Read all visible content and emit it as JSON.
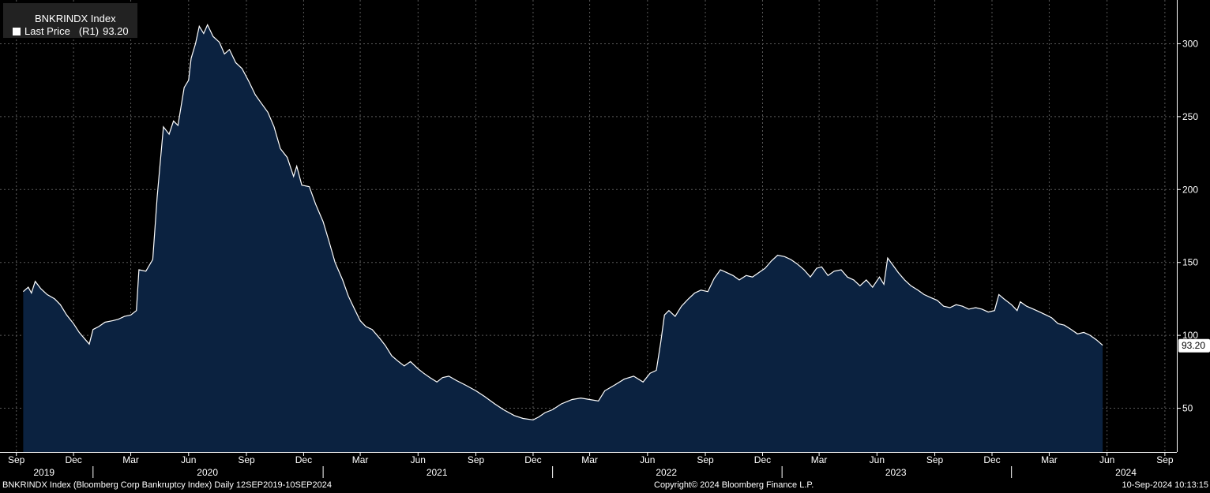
{
  "legend": {
    "title": "BNKRINDX Index",
    "series_label": "Last Price",
    "axis_ref": "(R1)",
    "value": "93.20"
  },
  "footer": {
    "left": "BNKRINDX Index (Bloomberg Corp Bankruptcy Index)  Daily 12SEP2019-10SEP2024",
    "center": "Copyright© 2024 Bloomberg Finance L.P.",
    "right": "10-Sep-2024 10:13:15"
  },
  "colors": {
    "background": "#000000",
    "area_fill": "#0b2240",
    "line": "#ffffff",
    "grid": "#5a5a5a"
  },
  "chart_data": {
    "type": "area",
    "title": "BNKRINDX Index",
    "frequency": "Daily",
    "date_range": [
      "2019-09-12",
      "2024-09-10"
    ],
    "y_axis": {
      "side": "right",
      "ylim": [
        20,
        330
      ],
      "ticks": [
        50,
        100,
        150,
        200,
        250,
        300
      ]
    },
    "last_value": 93.2,
    "x_month_labels": [
      {
        "date": "2019-09-01",
        "label": "Sep"
      },
      {
        "date": "2019-12-01",
        "label": "Dec"
      },
      {
        "date": "2020-03-01",
        "label": "Mar"
      },
      {
        "date": "2020-06-01",
        "label": "Jun"
      },
      {
        "date": "2020-09-01",
        "label": "Sep"
      },
      {
        "date": "2020-12-01",
        "label": "Dec"
      },
      {
        "date": "2021-03-01",
        "label": "Mar"
      },
      {
        "date": "2021-06-01",
        "label": "Jun"
      },
      {
        "date": "2021-09-01",
        "label": "Sep"
      },
      {
        "date": "2021-12-01",
        "label": "Dec"
      },
      {
        "date": "2022-03-01",
        "label": "Mar"
      },
      {
        "date": "2022-06-01",
        "label": "Jun"
      },
      {
        "date": "2022-09-01",
        "label": "Sep"
      },
      {
        "date": "2022-12-01",
        "label": "Dec"
      },
      {
        "date": "2023-03-01",
        "label": "Mar"
      },
      {
        "date": "2023-06-01",
        "label": "Jun"
      },
      {
        "date": "2023-09-01",
        "label": "Sep"
      },
      {
        "date": "2023-12-01",
        "label": "Dec"
      },
      {
        "date": "2024-03-01",
        "label": "Mar"
      },
      {
        "date": "2024-06-01",
        "label": "Jun"
      },
      {
        "date": "2024-09-01",
        "label": "Sep"
      }
    ],
    "x_year_labels": [
      {
        "date": "2019-10-15",
        "label": "2019"
      },
      {
        "date": "2020-07-01",
        "label": "2020"
      },
      {
        "date": "2021-07-01",
        "label": "2021"
      },
      {
        "date": "2022-07-01",
        "label": "2022"
      },
      {
        "date": "2023-07-01",
        "label": "2023"
      },
      {
        "date": "2024-07-01",
        "label": "2024"
      }
    ],
    "year_boundaries": [
      "2020-01-01",
      "2021-01-01",
      "2022-01-01",
      "2023-01-01",
      "2024-01-01"
    ],
    "series": [
      {
        "points": [
          [
            "2019-09-12",
            130
          ],
          [
            "2019-09-20",
            133
          ],
          [
            "2019-09-25",
            129
          ],
          [
            "2019-10-01",
            137
          ],
          [
            "2019-10-10",
            132
          ],
          [
            "2019-10-20",
            128
          ],
          [
            "2019-11-01",
            125
          ],
          [
            "2019-11-10",
            121
          ],
          [
            "2019-11-20",
            114
          ],
          [
            "2019-12-01",
            108
          ],
          [
            "2019-12-10",
            102
          ],
          [
            "2019-12-20",
            97
          ],
          [
            "2019-12-26",
            94
          ],
          [
            "2020-01-01",
            104
          ],
          [
            "2020-01-10",
            106
          ],
          [
            "2020-01-20",
            109
          ],
          [
            "2020-02-01",
            110
          ],
          [
            "2020-02-10",
            111
          ],
          [
            "2020-02-20",
            113
          ],
          [
            "2020-03-01",
            114
          ],
          [
            "2020-03-10",
            117
          ],
          [
            "2020-03-14",
            145
          ],
          [
            "2020-03-25",
            144
          ],
          [
            "2020-04-05",
            152
          ],
          [
            "2020-04-12",
            195
          ],
          [
            "2020-04-22",
            243
          ],
          [
            "2020-05-01",
            238
          ],
          [
            "2020-05-08",
            247
          ],
          [
            "2020-05-15",
            244
          ],
          [
            "2020-05-25",
            270
          ],
          [
            "2020-06-01",
            275
          ],
          [
            "2020-06-05",
            290
          ],
          [
            "2020-06-12",
            300
          ],
          [
            "2020-06-18",
            312
          ],
          [
            "2020-06-25",
            307
          ],
          [
            "2020-07-01",
            313
          ],
          [
            "2020-07-10",
            305
          ],
          [
            "2020-07-20",
            301
          ],
          [
            "2020-07-28",
            293
          ],
          [
            "2020-08-05",
            296
          ],
          [
            "2020-08-15",
            287
          ],
          [
            "2020-08-25",
            283
          ],
          [
            "2020-09-05",
            274
          ],
          [
            "2020-09-15",
            265
          ],
          [
            "2020-09-25",
            259
          ],
          [
            "2020-10-05",
            253
          ],
          [
            "2020-10-15",
            243
          ],
          [
            "2020-10-25",
            228
          ],
          [
            "2020-11-05",
            222
          ],
          [
            "2020-11-15",
            209
          ],
          [
            "2020-11-20",
            216
          ],
          [
            "2020-11-28",
            203
          ],
          [
            "2020-12-10",
            202
          ],
          [
            "2020-12-20",
            190
          ],
          [
            "2021-01-01",
            178
          ],
          [
            "2021-01-10",
            165
          ],
          [
            "2021-01-20",
            150
          ],
          [
            "2021-02-01",
            138
          ],
          [
            "2021-02-10",
            127
          ],
          [
            "2021-02-20",
            118
          ],
          [
            "2021-03-01",
            110
          ],
          [
            "2021-03-10",
            106
          ],
          [
            "2021-03-20",
            104
          ],
          [
            "2021-04-01",
            98
          ],
          [
            "2021-04-10",
            93
          ],
          [
            "2021-04-20",
            86
          ],
          [
            "2021-05-01",
            82
          ],
          [
            "2021-05-10",
            79
          ],
          [
            "2021-05-20",
            82
          ],
          [
            "2021-06-01",
            77
          ],
          [
            "2021-06-10",
            74
          ],
          [
            "2021-06-20",
            71
          ],
          [
            "2021-07-01",
            68
          ],
          [
            "2021-07-10",
            71
          ],
          [
            "2021-07-20",
            72
          ],
          [
            "2021-08-01",
            69
          ],
          [
            "2021-08-15",
            66
          ],
          [
            "2021-09-01",
            62
          ],
          [
            "2021-09-15",
            58
          ],
          [
            "2021-10-01",
            53
          ],
          [
            "2021-10-15",
            49
          ],
          [
            "2021-11-01",
            45
          ],
          [
            "2021-11-15",
            43
          ],
          [
            "2021-12-01",
            42
          ],
          [
            "2021-12-10",
            44
          ],
          [
            "2021-12-20",
            47
          ],
          [
            "2022-01-01",
            49
          ],
          [
            "2022-01-15",
            53
          ],
          [
            "2022-02-01",
            56
          ],
          [
            "2022-02-15",
            57
          ],
          [
            "2022-03-01",
            56
          ],
          [
            "2022-03-15",
            55
          ],
          [
            "2022-03-25",
            62
          ],
          [
            "2022-04-10",
            66
          ],
          [
            "2022-04-25",
            70
          ],
          [
            "2022-05-10",
            72
          ],
          [
            "2022-05-25",
            68
          ],
          [
            "2022-06-05",
            74
          ],
          [
            "2022-06-15",
            76
          ],
          [
            "2022-06-22",
            95
          ],
          [
            "2022-06-28",
            114
          ],
          [
            "2022-07-05",
            117
          ],
          [
            "2022-07-15",
            113
          ],
          [
            "2022-07-25",
            120
          ],
          [
            "2022-08-05",
            125
          ],
          [
            "2022-08-15",
            129
          ],
          [
            "2022-08-25",
            131
          ],
          [
            "2022-09-05",
            130
          ],
          [
            "2022-09-15",
            139
          ],
          [
            "2022-09-25",
            145
          ],
          [
            "2022-10-05",
            143
          ],
          [
            "2022-10-15",
            141
          ],
          [
            "2022-10-25",
            138
          ],
          [
            "2022-11-05",
            141
          ],
          [
            "2022-11-15",
            140
          ],
          [
            "2022-11-25",
            143
          ],
          [
            "2022-12-05",
            146
          ],
          [
            "2022-12-15",
            151
          ],
          [
            "2022-12-25",
            155
          ],
          [
            "2023-01-05",
            154
          ],
          [
            "2023-01-15",
            152
          ],
          [
            "2023-01-25",
            149
          ],
          [
            "2023-02-05",
            145
          ],
          [
            "2023-02-15",
            140
          ],
          [
            "2023-02-25",
            146
          ],
          [
            "2023-03-05",
            147
          ],
          [
            "2023-03-15",
            141
          ],
          [
            "2023-03-25",
            144
          ],
          [
            "2023-04-05",
            145
          ],
          [
            "2023-04-15",
            140
          ],
          [
            "2023-04-25",
            138
          ],
          [
            "2023-05-05",
            134
          ],
          [
            "2023-05-15",
            138
          ],
          [
            "2023-05-25",
            133
          ],
          [
            "2023-06-05",
            140
          ],
          [
            "2023-06-12",
            135
          ],
          [
            "2023-06-18",
            153
          ],
          [
            "2023-06-25",
            149
          ],
          [
            "2023-07-05",
            143
          ],
          [
            "2023-07-15",
            138
          ],
          [
            "2023-07-25",
            134
          ],
          [
            "2023-08-05",
            131
          ],
          [
            "2023-08-15",
            128
          ],
          [
            "2023-08-25",
            126
          ],
          [
            "2023-09-05",
            124
          ],
          [
            "2023-09-15",
            120
          ],
          [
            "2023-09-25",
            119
          ],
          [
            "2023-10-05",
            121
          ],
          [
            "2023-10-15",
            120
          ],
          [
            "2023-10-25",
            118
          ],
          [
            "2023-11-05",
            119
          ],
          [
            "2023-11-15",
            118
          ],
          [
            "2023-11-25",
            116
          ],
          [
            "2023-12-05",
            117
          ],
          [
            "2023-12-12",
            128
          ],
          [
            "2023-12-20",
            125
          ],
          [
            "2024-01-01",
            121
          ],
          [
            "2024-01-10",
            117
          ],
          [
            "2024-01-15",
            123
          ],
          [
            "2024-01-25",
            120
          ],
          [
            "2024-02-05",
            118
          ],
          [
            "2024-02-15",
            116
          ],
          [
            "2024-02-25",
            114
          ],
          [
            "2024-03-05",
            112
          ],
          [
            "2024-03-15",
            108
          ],
          [
            "2024-03-25",
            107
          ],
          [
            "2024-04-05",
            104
          ],
          [
            "2024-04-15",
            101
          ],
          [
            "2024-04-25",
            102
          ],
          [
            "2024-05-05",
            100
          ],
          [
            "2024-05-15",
            97
          ],
          [
            "2024-05-25",
            93.2
          ]
        ]
      }
    ]
  }
}
